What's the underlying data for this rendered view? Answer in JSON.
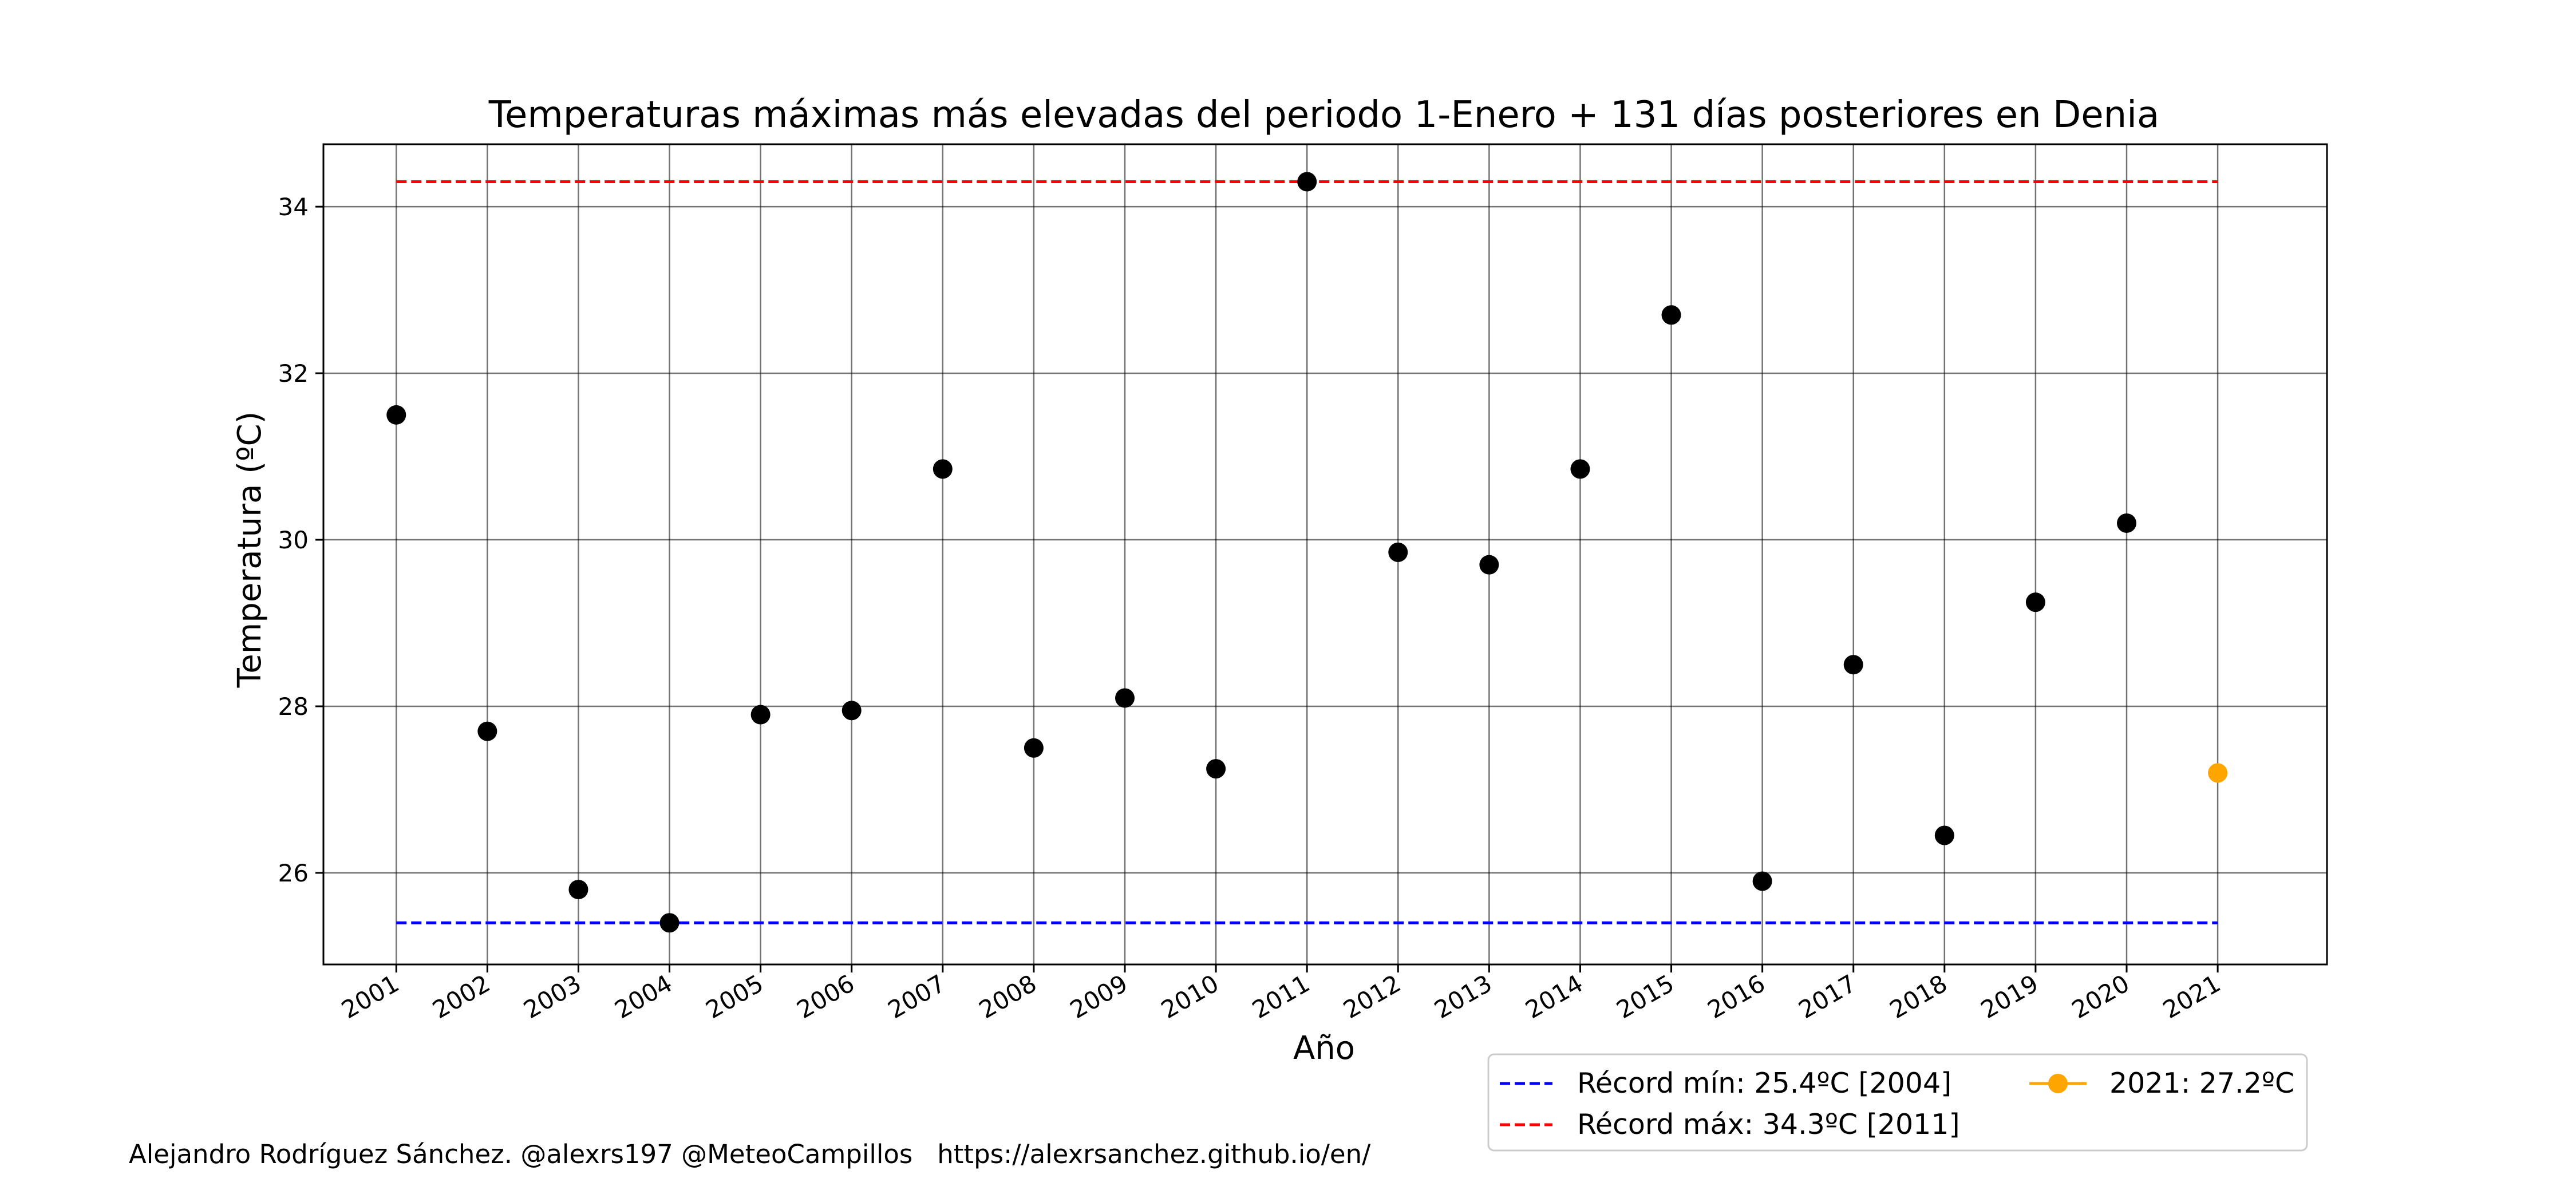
{
  "chart_data": {
    "type": "scatter",
    "title": "Temperaturas máximas más elevadas del periodo 1-Enero + 131 días posteriores en Denia",
    "xlabel": "Año",
    "ylabel": "Temperatura (ºC)",
    "x": [
      2001,
      2002,
      2003,
      2004,
      2005,
      2006,
      2007,
      2008,
      2009,
      2010,
      2011,
      2012,
      2013,
      2014,
      2015,
      2016,
      2017,
      2018,
      2019,
      2020
    ],
    "xticks": [
      "2001",
      "2002",
      "2003",
      "2004",
      "2005",
      "2006",
      "2007",
      "2008",
      "2009",
      "2010",
      "2011",
      "2012",
      "2013",
      "2014",
      "2015",
      "2016",
      "2017",
      "2018",
      "2019",
      "2020",
      "2021"
    ],
    "yticks": [
      26,
      28,
      30,
      32,
      34
    ],
    "xlim": [
      2000.2,
      2022.2
    ],
    "ylim": [
      24.9,
      34.75
    ],
    "grid": true,
    "series": [
      {
        "color": "#000000",
        "values": [
          31.5,
          27.7,
          25.8,
          25.4,
          27.9,
          27.95,
          30.85,
          27.5,
          28.1,
          27.25,
          34.3,
          29.85,
          29.7,
          30.85,
          32.7,
          25.9,
          28.5,
          26.45,
          29.25,
          30.2
        ]
      }
    ],
    "highlight": {
      "x": 2021,
      "y": 27.2,
      "color": "#ffa500",
      "label": "2021: 27.2ºC"
    },
    "reference_lines": [
      {
        "label": "Récord mín: 25.4ºC [2004]",
        "value": 25.4,
        "color": "#0000ff",
        "style": "dashed"
      },
      {
        "label": "Récord máx: 34.3ºC [2011]",
        "value": 34.3,
        "color": "#ff0000",
        "style": "dashed"
      }
    ],
    "legend_position": "below-right"
  },
  "footer": {
    "credit": "Alejandro Rodríguez Sánchez. @alexrs197 @MeteoCampillos   https://alexrsanchez.github.io/en/"
  }
}
